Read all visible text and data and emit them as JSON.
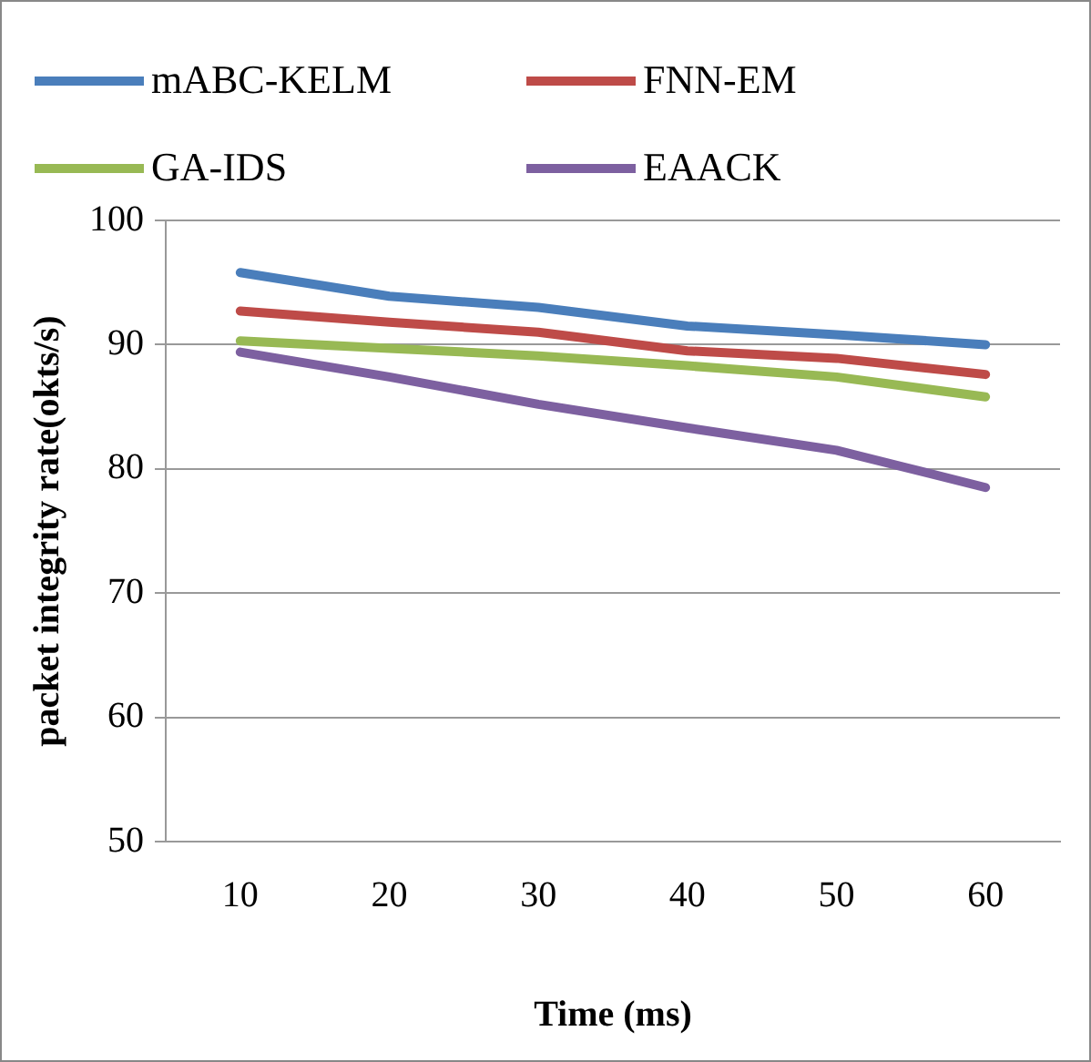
{
  "chart_data": {
    "type": "line",
    "xlabel": "Time (ms)",
    "ylabel": "packet integrity rate(okts/s)",
    "categories": [
      "10",
      "20",
      "30",
      "40",
      "50",
      "60"
    ],
    "series": [
      {
        "name": "mABC-KELM",
        "color": "#4a7ebb",
        "values": [
          95.8,
          93.9,
          93.0,
          91.5,
          90.8,
          90.0
        ]
      },
      {
        "name": "FNN-EM",
        "color": "#be4b48",
        "values": [
          92.7,
          91.8,
          91.0,
          89.5,
          88.9,
          87.6
        ]
      },
      {
        "name": "GA-IDS",
        "color": "#98b954",
        "values": [
          90.3,
          89.7,
          89.1,
          88.3,
          87.4,
          85.8
        ]
      },
      {
        "name": "EAACK",
        "color": "#7d60a0",
        "values": [
          89.4,
          87.4,
          85.2,
          83.3,
          81.5,
          78.5
        ]
      }
    ],
    "ylim": [
      50,
      100
    ],
    "yticks": [
      50,
      60,
      70,
      80,
      90,
      100
    ],
    "grid": "y",
    "legend": "top",
    "marker": "none",
    "line_style": "solid"
  }
}
